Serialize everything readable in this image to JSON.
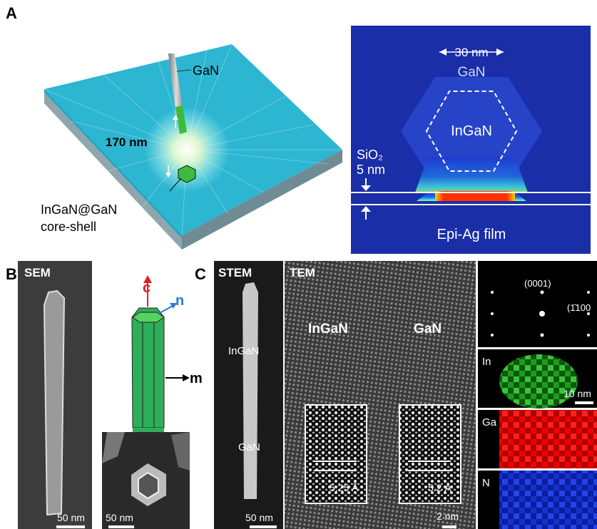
{
  "panel_a": {
    "label": "A",
    "schematic": {
      "nanowire": "GaN",
      "distance": "170 nm",
      "structure": [
        "InGaN@GaN",
        "core-shell"
      ]
    },
    "field_map": {
      "width": "30 nm",
      "shell": "GaN",
      "core": "InGaN",
      "spacer": "SiO₂",
      "spacer_thickness": "5 nm",
      "substrate": "Epi-Ag film"
    }
  },
  "panel_b": {
    "label": "B",
    "sem": {
      "title": "SEM",
      "scale_bar": "50 nm"
    },
    "schematic": {
      "axes": [
        "c",
        "n",
        "m"
      ]
    },
    "top_view": {
      "scale_bar": "50 nm"
    }
  },
  "panel_c": {
    "label": "C",
    "stem": {
      "title": "STEM",
      "regions": [
        "InGaN",
        "GaN"
      ],
      "scale_bar": "50 nm"
    },
    "tem": {
      "title": "TEM",
      "regions": [
        "InGaN",
        "GaN"
      ],
      "spacings": [
        "5.25 Å",
        "5.2 Å"
      ],
      "scale_bar": "2 nm"
    },
    "diffraction": {
      "spots": [
        "(0001)",
        "(1̄100"
      ]
    },
    "eds_maps": [
      {
        "element": "In",
        "scale_bar": "10 nm"
      },
      {
        "element": "Ga"
      },
      {
        "element": "N"
      }
    ]
  }
}
